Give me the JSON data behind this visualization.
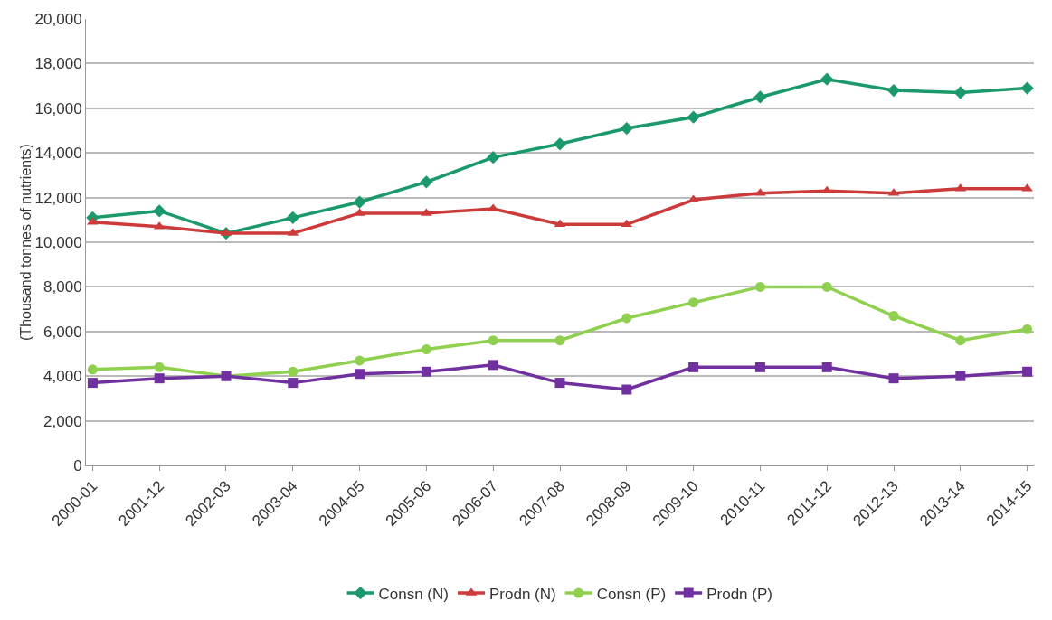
{
  "chart_data": {
    "type": "line",
    "ylabel": "(Thousand tonnes of nutrients)",
    "categories": [
      "2000-01",
      "2001-12",
      "2002-03",
      "2003-04",
      "2004-05",
      "2005-06",
      "2006-07",
      "2007-08",
      "2008-09",
      "2009-10",
      "2010-11",
      "2011-12",
      "2012-13",
      "2013-14",
      "2014-15"
    ],
    "series": [
      {
        "name": "Consn (N)",
        "color": "#1a9a6a",
        "marker": "diamond",
        "values": [
          11100,
          11400,
          10400,
          11100,
          11800,
          12700,
          13800,
          14400,
          15100,
          15600,
          16500,
          17300,
          16800,
          16700,
          16900
        ]
      },
      {
        "name": "Prodn (N)",
        "color": "#cc3a3a",
        "marker": "triangle",
        "values": [
          10900,
          10700,
          10400,
          10400,
          11300,
          11300,
          11500,
          10800,
          10800,
          11900,
          12200,
          12300,
          12200,
          12400,
          12400
        ]
      },
      {
        "name": "Consn (P)",
        "color": "#8fd14f",
        "marker": "circle",
        "values": [
          4300,
          4400,
          4000,
          4200,
          4700,
          5200,
          5600,
          5600,
          6600,
          7300,
          8000,
          8000,
          6700,
          5600,
          6100
        ]
      },
      {
        "name": "Prodn (P)",
        "color": "#7030a0",
        "marker": "square",
        "values": [
          3700,
          3900,
          4000,
          3700,
          4100,
          4200,
          4500,
          3700,
          3400,
          4400,
          4400,
          4400,
          3900,
          4000,
          4200
        ]
      }
    ],
    "ylim": [
      0,
      20000
    ],
    "yticks": [
      {
        "value": 0,
        "label": "0"
      },
      {
        "value": 2000,
        "label": "2,000"
      },
      {
        "value": 4000,
        "label": "4,000"
      },
      {
        "value": 6000,
        "label": "6,000"
      },
      {
        "value": 8000,
        "label": "8,000"
      },
      {
        "value": 10000,
        "label": "10,000"
      },
      {
        "value": 12000,
        "label": "12,000"
      },
      {
        "value": 14000,
        "label": "14,000"
      },
      {
        "value": 16000,
        "label": "16,000"
      },
      {
        "value": 18000,
        "label": "18,000"
      },
      {
        "value": 20000,
        "label": "20,000"
      }
    ],
    "grid": "y",
    "legend": "bottom",
    "line_style": "solid"
  }
}
